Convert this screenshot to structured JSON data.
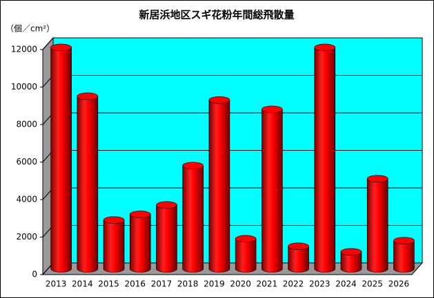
{
  "chart_data": {
    "type": "bar3d-cylinder",
    "title": "新居浜地区スギ花粉年間総飛散量",
    "y_label": "（個／cm²）",
    "categories": [
      "2013",
      "2014",
      "2015",
      "2016",
      "2017",
      "2018",
      "2019",
      "2020",
      "2021",
      "2022",
      "2023",
      "2024",
      "2025",
      "2026"
    ],
    "values": [
      11800,
      9200,
      2600,
      2900,
      3400,
      5500,
      9000,
      1600,
      8500,
      1200,
      11800,
      900,
      4800,
      1500
    ],
    "color": "#ff0000",
    "wall_color": "#00ffff",
    "ylim": [
      0,
      12000
    ],
    "yticks": [
      0,
      2000,
      4000,
      6000,
      8000,
      10000,
      12000
    ],
    "grid": true
  }
}
